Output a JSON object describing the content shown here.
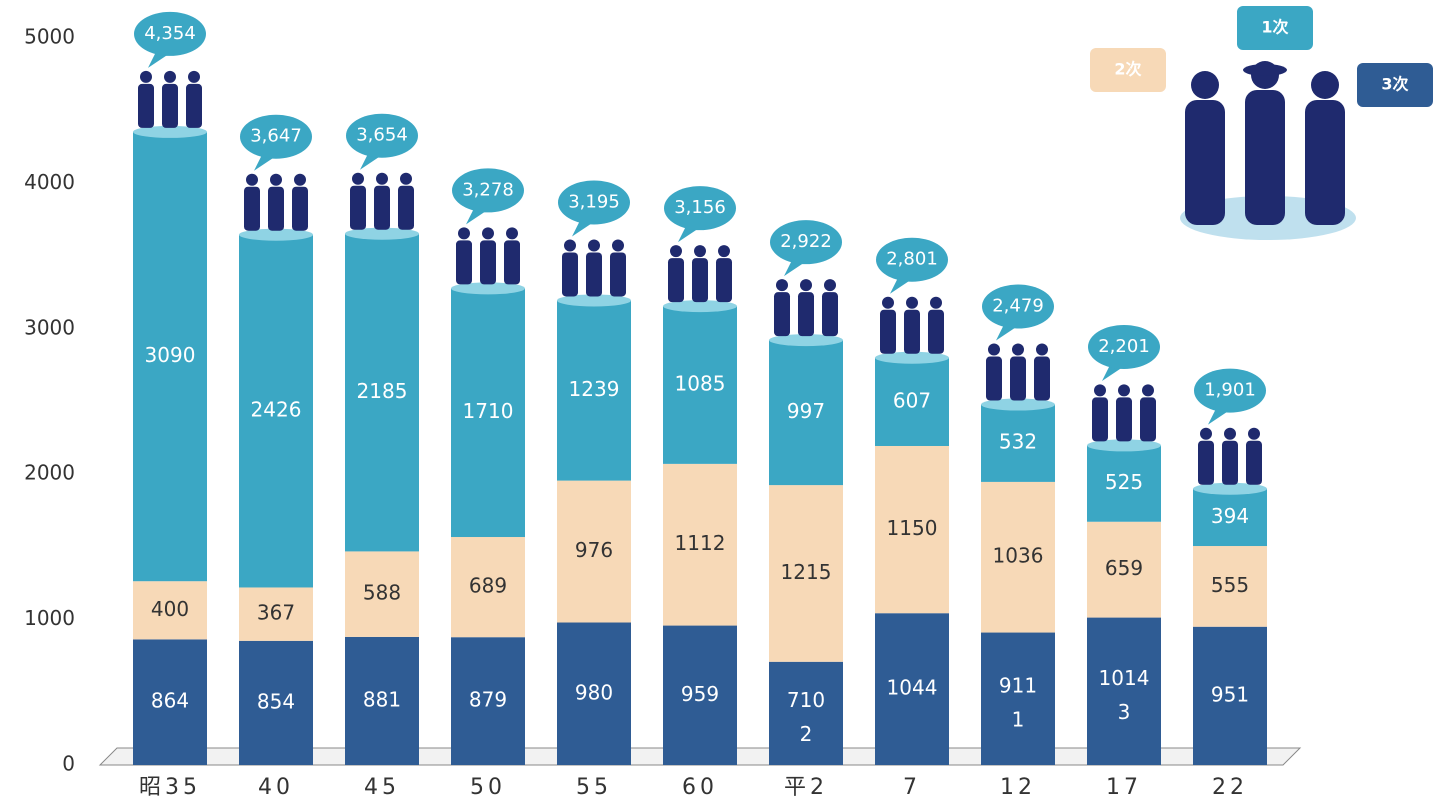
{
  "chart_data": {
    "type": "stacked-cylinder",
    "categories": [
      "昭35",
      "40",
      "45",
      "50",
      "55",
      "60",
      "平2",
      "7",
      "12",
      "17",
      "22"
    ],
    "series": [
      {
        "name": "3次",
        "color": "#2f5c94",
        "values": [
          864,
          854,
          881,
          879,
          980,
          959,
          710,
          1044,
          911,
          1014,
          951
        ]
      },
      {
        "name": "2次",
        "color": "#f7d9b7",
        "values": [
          400,
          367,
          588,
          689,
          976,
          1112,
          1215,
          1150,
          1036,
          659,
          555
        ]
      },
      {
        "name": "1次",
        "color": "#3ba7c4",
        "values": [
          3090,
          2426,
          2185,
          1710,
          1239,
          1085,
          997,
          607,
          532,
          525,
          394
        ]
      }
    ],
    "other_values": [
      null,
      null,
      null,
      null,
      null,
      null,
      2,
      null,
      1,
      3,
      null
    ],
    "totals": [
      4354,
      3647,
      3654,
      3278,
      3195,
      3156,
      2922,
      2801,
      2479,
      2201,
      1901
    ],
    "total_labels": [
      "4,354",
      "3,647",
      "3,654",
      "3,278",
      "3,195",
      "3,156",
      "2,922",
      "2,801",
      "2,479",
      "2,201",
      "1,901"
    ],
    "ylim": [
      0,
      5000
    ],
    "yticks": [
      0,
      1000,
      2000,
      3000,
      4000,
      5000
    ],
    "grid": false
  }
}
